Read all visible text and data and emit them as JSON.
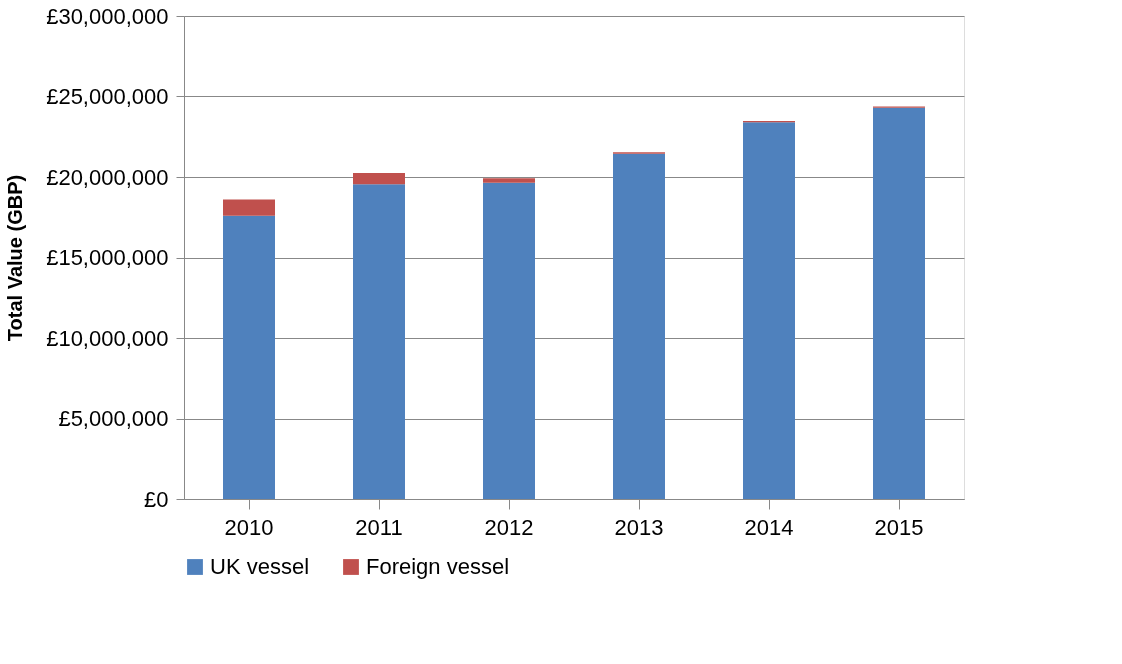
{
  "chart_data": {
    "type": "bar",
    "stacked": true,
    "ylabel": "Total Value (GBP)",
    "categories": [
      "2010",
      "2011",
      "2012",
      "2013",
      "2014",
      "2015"
    ],
    "series": [
      {
        "name": "UK vessel",
        "color": "#4f81bd",
        "values": [
          17600000,
          19550000,
          19650000,
          21450000,
          23400000,
          24300000
        ]
      },
      {
        "name": "Foreign vessel",
        "color": "#c0504d",
        "values": [
          1000000,
          700000,
          270000,
          80000,
          80000,
          80000
        ]
      }
    ],
    "ylim": [
      0,
      30000000
    ],
    "yticks": [
      {
        "value": 0,
        "label": "£0"
      },
      {
        "value": 5000000,
        "label": "£5,000,000"
      },
      {
        "value": 10000000,
        "label": "£10,000,000"
      },
      {
        "value": 15000000,
        "label": "£15,000,000"
      },
      {
        "value": 20000000,
        "label": "£20,000,000"
      },
      {
        "value": 25000000,
        "label": "£25,000,000"
      },
      {
        "value": 30000000,
        "label": "£30,000,000"
      }
    ],
    "grid": "y",
    "legend": "bottom"
  }
}
